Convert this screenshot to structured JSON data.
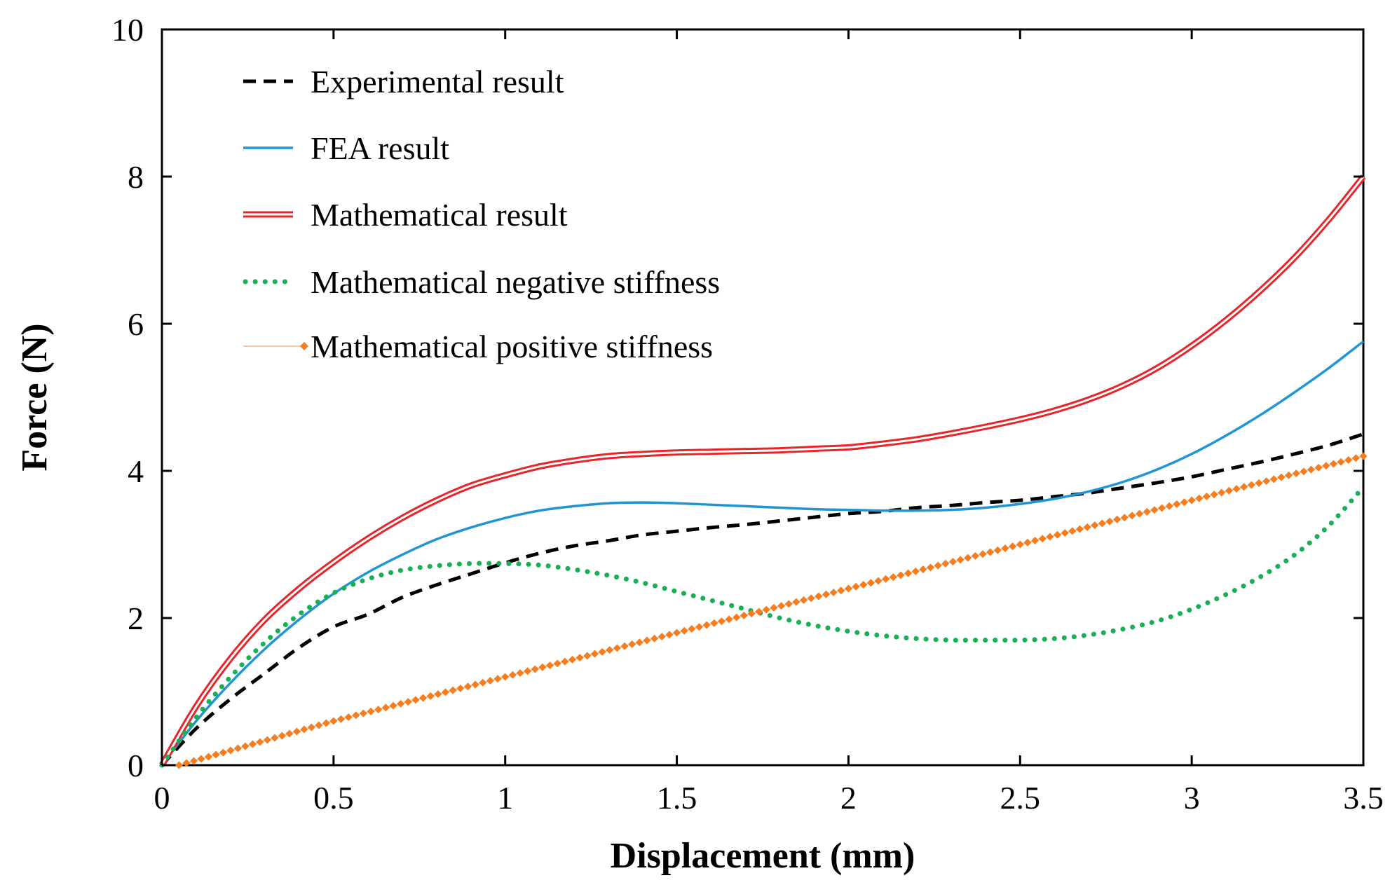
{
  "chart_data": {
    "type": "line",
    "title": "",
    "xlabel": "Displacement (mm)",
    "ylabel": "Force (N)",
    "xlim": [
      0,
      3.5
    ],
    "ylim": [
      0,
      10
    ],
    "xticks": [
      0,
      0.5,
      1,
      1.5,
      2,
      2.5,
      3,
      3.5
    ],
    "xtick_labels": [
      "0",
      "0.5",
      "1",
      "1.5",
      "2",
      "2.5",
      "3",
      "3.5"
    ],
    "yticks": [
      0,
      2,
      4,
      6,
      8,
      10
    ],
    "ytick_labels": [
      "0",
      "2",
      "4",
      "6",
      "8",
      "10"
    ],
    "grid": false,
    "legend_position": "top-left",
    "series": [
      {
        "name": "Experimental result",
        "color": "#000000",
        "style": "dashed",
        "x": [
          0,
          0.1,
          0.2,
          0.3,
          0.4,
          0.5,
          0.6,
          0.7,
          0.8,
          0.9,
          1.0,
          1.1,
          1.2,
          1.3,
          1.4,
          1.5,
          1.6,
          1.7,
          1.8,
          1.9,
          2.0,
          2.1,
          2.2,
          2.3,
          2.4,
          2.5,
          2.6,
          2.7,
          2.8,
          2.9,
          3.0,
          3.1,
          3.2,
          3.3,
          3.4,
          3.5
        ],
        "y": [
          0,
          0.5,
          0.9,
          1.25,
          1.6,
          1.88,
          2.05,
          2.28,
          2.45,
          2.6,
          2.75,
          2.88,
          2.98,
          3.05,
          3.13,
          3.18,
          3.23,
          3.27,
          3.32,
          3.37,
          3.42,
          3.45,
          3.5,
          3.53,
          3.57,
          3.6,
          3.65,
          3.7,
          3.77,
          3.84,
          3.92,
          4.02,
          4.12,
          4.23,
          4.35,
          4.5
        ]
      },
      {
        "name": "FEA result",
        "color": "#1f96d2",
        "style": "solid",
        "x": [
          0,
          0.1,
          0.2,
          0.3,
          0.4,
          0.5,
          0.6,
          0.7,
          0.8,
          0.9,
          1.0,
          1.1,
          1.2,
          1.3,
          1.4,
          1.5,
          1.6,
          1.7,
          1.8,
          1.9,
          2.0,
          2.1,
          2.2,
          2.3,
          2.4,
          2.5,
          2.6,
          2.7,
          2.8,
          2.9,
          3.0,
          3.1,
          3.2,
          3.3,
          3.4,
          3.5
        ],
        "y": [
          0,
          0.6,
          1.12,
          1.58,
          1.98,
          2.33,
          2.62,
          2.86,
          3.07,
          3.23,
          3.36,
          3.46,
          3.52,
          3.56,
          3.57,
          3.56,
          3.54,
          3.52,
          3.5,
          3.48,
          3.47,
          3.46,
          3.46,
          3.47,
          3.5,
          3.55,
          3.62,
          3.72,
          3.85,
          4.02,
          4.23,
          4.48,
          4.76,
          5.07,
          5.4,
          5.76
        ]
      },
      {
        "name": "Mathematical result",
        "color": "#e8262a",
        "style": "double",
        "x": [
          0,
          0.1,
          0.2,
          0.3,
          0.4,
          0.5,
          0.6,
          0.7,
          0.8,
          0.9,
          1.0,
          1.1,
          1.2,
          1.3,
          1.4,
          1.5,
          1.6,
          1.7,
          1.8,
          1.9,
          2.0,
          2.1,
          2.2,
          2.3,
          2.4,
          2.5,
          2.6,
          2.7,
          2.8,
          2.9,
          3.0,
          3.1,
          3.2,
          3.3,
          3.4,
          3.5
        ],
        "y": [
          0,
          0.8,
          1.45,
          1.98,
          2.4,
          2.76,
          3.08,
          3.36,
          3.6,
          3.8,
          3.94,
          4.06,
          4.14,
          4.2,
          4.23,
          4.25,
          4.26,
          4.27,
          4.28,
          4.3,
          4.32,
          4.37,
          4.43,
          4.51,
          4.6,
          4.7,
          4.82,
          4.97,
          5.16,
          5.4,
          5.7,
          6.05,
          6.45,
          6.9,
          7.42,
          8.0
        ]
      },
      {
        "name": "Mathematical negative stiffness",
        "color": "#1aaf54",
        "style": "dotted",
        "x": [
          0,
          0.1,
          0.2,
          0.3,
          0.4,
          0.5,
          0.6,
          0.7,
          0.8,
          0.9,
          1.0,
          1.1,
          1.2,
          1.3,
          1.4,
          1.5,
          1.6,
          1.7,
          1.8,
          1.9,
          2.0,
          2.1,
          2.2,
          2.3,
          2.4,
          2.5,
          2.6,
          2.7,
          2.8,
          2.9,
          3.0,
          3.1,
          3.2,
          3.3,
          3.4,
          3.5
        ],
        "y": [
          0,
          0.65,
          1.2,
          1.67,
          2.05,
          2.34,
          2.53,
          2.65,
          2.71,
          2.74,
          2.74,
          2.72,
          2.66,
          2.58,
          2.48,
          2.36,
          2.24,
          2.12,
          2.0,
          1.9,
          1.82,
          1.76,
          1.72,
          1.7,
          1.7,
          1.7,
          1.72,
          1.77,
          1.85,
          1.96,
          2.12,
          2.32,
          2.56,
          2.86,
          3.26,
          3.78
        ]
      },
      {
        "name": "Mathematical positive stiffness",
        "color": "#f47d20",
        "style": "diamond-markers",
        "x": [
          0.05,
          0.5,
          1.0,
          1.5,
          2.0,
          2.5,
          3.0,
          3.5
        ],
        "y": [
          0.0,
          0.6,
          1.2,
          1.8,
          2.4,
          3.0,
          3.6,
          4.2
        ]
      }
    ]
  }
}
